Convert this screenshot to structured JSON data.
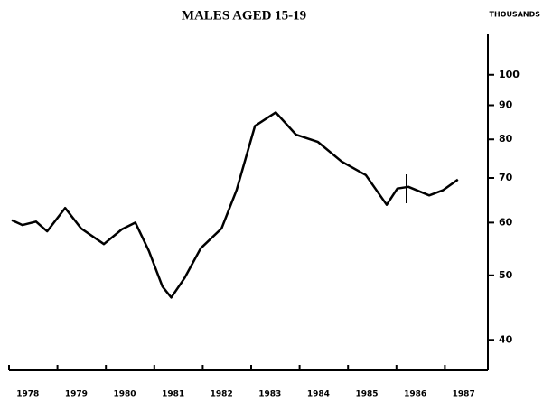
{
  "chart_data": {
    "type": "line",
    "title": "MALES AGED 15-19",
    "y_unit_label": "THOUSANDS",
    "log_scale_y": true,
    "xlim": [
      1978,
      1988
    ],
    "ylim": [
      36,
      115
    ],
    "xticks": [
      1978,
      1979,
      1980,
      1981,
      1982,
      1983,
      1984,
      1985,
      1986,
      1987
    ],
    "yticks": [
      40,
      50,
      60,
      70,
      80,
      90,
      100
    ],
    "series": [
      {
        "color": "#000000",
        "x": [
          1978.17,
          1978.39,
          1978.67,
          1978.9,
          1979.27,
          1979.6,
          1980.07,
          1980.44,
          1980.72,
          1981.0,
          1981.28,
          1981.46,
          1981.74,
          1982.07,
          1982.5,
          1982.81,
          1983.19,
          1983.62,
          1984.04,
          1984.49,
          1984.98,
          1985.48,
          1985.91,
          1986.13,
          1986.36,
          1986.79,
          1987.07,
          1987.38
        ],
        "values": [
          60.5,
          59.5,
          60.2,
          58.2,
          63.1,
          58.8,
          55.7,
          58.6,
          60.0,
          54.4,
          48.1,
          46.3,
          49.6,
          54.9,
          58.8,
          67.1,
          83.8,
          87.8,
          81.3,
          79.3,
          74.1,
          70.7,
          63.8,
          67.5,
          67.9,
          65.9,
          67.1,
          69.6
        ]
      }
    ]
  }
}
